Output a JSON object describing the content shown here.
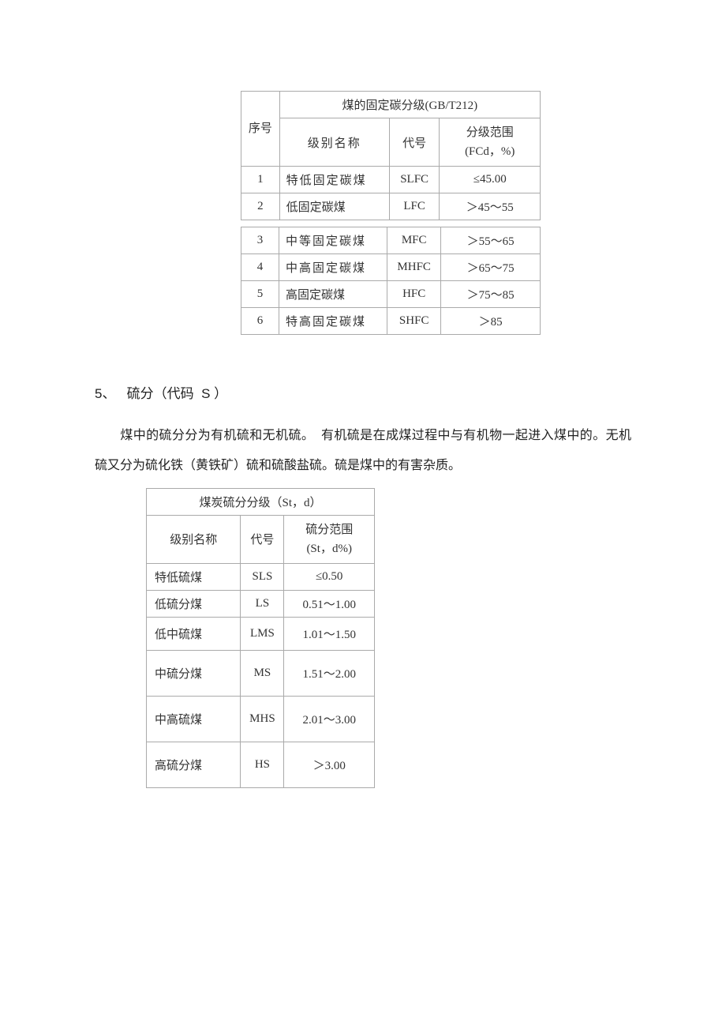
{
  "table1": {
    "title": "煤的固定碳分级(GB/T212)",
    "headers": {
      "seq": "序号",
      "name": "级别名称",
      "code": "代号",
      "range_l1": "分级范围",
      "range_l2": "(FCd，%)"
    },
    "rows_a": [
      {
        "seq": "1",
        "name": "特低固定碳煤",
        "code": "SLFC",
        "range": "≤45.00"
      },
      {
        "seq": "2",
        "name": "低固定碳煤",
        "code": "LFC",
        "range": "＞45～55"
      }
    ],
    "rows_b": [
      {
        "seq": "3",
        "name": "中等固定碳煤",
        "code": "MFC",
        "range": "＞55～65"
      },
      {
        "seq": "4",
        "name": "中高固定碳煤",
        "code": "MHFC",
        "range": "＞65～75"
      },
      {
        "seq": "5",
        "name": "高固定碳煤",
        "code": "HFC",
        "range": "＞75～85"
      },
      {
        "seq": "6",
        "name": "特高固定碳煤",
        "code": "SHFC",
        "range": "＞85"
      }
    ]
  },
  "section": {
    "number": "5、",
    "title_pre": "硫分（代码",
    "title_code": "S",
    "title_post": "）",
    "para1_a": "煤中的硫分分为有机硫和无机硫。",
    "para1_b": "有机硫是在成煤过程中与有机物一起进入煤中的。无机硫又分为硫化铁（黄铁矿）硫和硫酸盐硫。硫是煤中的有害杂质。"
  },
  "table2": {
    "title": "煤炭硫分分级（St，d）",
    "headers": {
      "name": "级别名称",
      "code": "代号",
      "range_l1": "硫分范围",
      "range_l2": "(St，d%)"
    },
    "rows": [
      {
        "name": "特低硫煤",
        "code": "SLS",
        "range": "≤0.50",
        "h": ""
      },
      {
        "name": "低硫分煤",
        "code": "LS",
        "range": "0.51～1.00",
        "h": ""
      },
      {
        "name": "低中硫煤",
        "code": "LMS",
        "range": "1.01～1.50",
        "h": "med"
      },
      {
        "name": "中硫分煤",
        "code": "MS",
        "range": "1.51～2.00",
        "h": "tall"
      },
      {
        "name": "中高硫煤",
        "code": "MHS",
        "range": "2.01～3.00",
        "h": "tall"
      },
      {
        "name": "高硫分煤",
        "code": "HS",
        "range": "＞3.00",
        "h": "tall"
      }
    ]
  },
  "colors": {
    "border": "#aaaaaa",
    "text": "#333333",
    "bg": "#ffffff"
  }
}
